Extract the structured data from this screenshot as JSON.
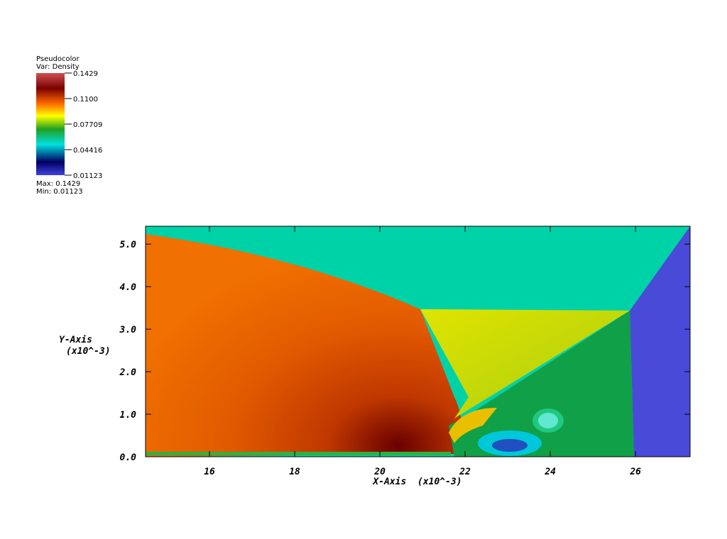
{
  "chart_data": {
    "type": "pseudocolor",
    "legend": {
      "title": "Pseudocolor",
      "variable": "Var: Density",
      "clim": [
        0.01123,
        0.1429
      ],
      "ticks": [
        0.1429,
        {
          "value": 0.11,
          "label": "0.1100"
        },
        0.07709,
        0.04416,
        0.01123
      ],
      "max": "Max: 0.1429",
      "min": "Min: 0.01123"
    },
    "x_label": "X-Axis  (x10^-3)",
    "y_label": "Y-Axis",
    "y_label_unit": "(x10^-3)",
    "xlim": [
      14.5,
      27.28
    ],
    "ylim": [
      0,
      5.42
    ],
    "xticks": [
      16,
      18,
      20,
      22,
      24,
      26
    ],
    "yticks": [
      {
        "value": 0,
        "label": "0.0"
      },
      {
        "value": 1,
        "label": "1.0"
      },
      {
        "value": 2,
        "label": "2.0"
      },
      {
        "value": 3,
        "label": "3.0"
      },
      {
        "value": 4,
        "label": "4.0"
      },
      {
        "value": 5,
        "label": "5.0"
      }
    ]
  }
}
